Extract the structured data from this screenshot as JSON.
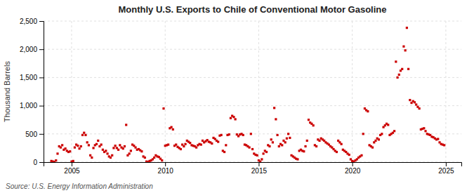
{
  "chart_data": {
    "type": "scatter",
    "title": "Monthly U.S. Exports to Chile of Conventional Motor Gasoline",
    "ylabel": "Thousand Barrels",
    "source": "Source: U.S. Energy Information Administration",
    "color": "#cc0000",
    "marker": "square",
    "grid": true,
    "xlim": [
      2003.5,
      2025.83
    ],
    "ylim": [
      0,
      2500
    ],
    "xticks": [
      2005,
      2010,
      2015,
      2020,
      2025
    ],
    "yticks": [
      0,
      500,
      {
        "value": 1000,
        "label": "1,000"
      },
      {
        "value": 1500,
        "label": "1,500"
      },
      {
        "value": 2000,
        "label": "2,000"
      },
      {
        "value": 2500,
        "label": "2,500"
      }
    ],
    "x": [
      2003.917,
      2004.0,
      2004.083,
      2004.167,
      2004.25,
      2004.333,
      2004.417,
      2004.5,
      2004.583,
      2004.667,
      2004.75,
      2004.833,
      2004.917,
      2005.0,
      2005.083,
      2005.167,
      2005.25,
      2005.333,
      2005.417,
      2005.5,
      2005.583,
      2005.667,
      2005.75,
      2005.833,
      2005.917,
      2006.0,
      2006.083,
      2006.167,
      2006.25,
      2006.333,
      2006.417,
      2006.5,
      2006.583,
      2006.667,
      2006.75,
      2006.833,
      2006.917,
      2007.0,
      2007.083,
      2007.167,
      2007.25,
      2007.333,
      2007.417,
      2007.5,
      2007.583,
      2007.667,
      2007.75,
      2007.833,
      2007.917,
      2008.0,
      2008.083,
      2008.167,
      2008.25,
      2008.333,
      2008.417,
      2008.5,
      2008.583,
      2008.667,
      2008.75,
      2008.833,
      2008.917,
      2009.0,
      2009.083,
      2009.167,
      2009.25,
      2009.333,
      2009.417,
      2009.5,
      2009.583,
      2009.667,
      2009.75,
      2009.833,
      2009.917,
      2010.0,
      2010.083,
      2010.167,
      2010.25,
      2010.333,
      2010.417,
      2010.5,
      2010.583,
      2010.667,
      2010.75,
      2010.833,
      2010.917,
      2011.0,
      2011.083,
      2011.167,
      2011.25,
      2011.333,
      2011.417,
      2011.5,
      2011.583,
      2011.667,
      2011.75,
      2011.833,
      2011.917,
      2012.0,
      2012.083,
      2012.167,
      2012.25,
      2012.333,
      2012.417,
      2012.5,
      2012.583,
      2012.667,
      2012.75,
      2012.833,
      2012.917,
      2013.0,
      2013.083,
      2013.167,
      2013.25,
      2013.333,
      2013.417,
      2013.5,
      2013.583,
      2013.667,
      2013.75,
      2013.833,
      2013.917,
      2014.0,
      2014.083,
      2014.167,
      2014.25,
      2014.333,
      2014.417,
      2014.5,
      2014.583,
      2014.667,
      2014.75,
      2014.833,
      2014.917,
      2015.0,
      2015.083,
      2015.167,
      2015.25,
      2015.333,
      2015.417,
      2015.5,
      2015.583,
      2015.667,
      2015.75,
      2015.833,
      2015.917,
      2016.0,
      2016.083,
      2016.167,
      2016.25,
      2016.333,
      2016.417,
      2016.5,
      2016.583,
      2016.667,
      2016.75,
      2016.833,
      2016.917,
      2017.0,
      2017.083,
      2017.167,
      2017.25,
      2017.333,
      2017.417,
      2017.5,
      2017.583,
      2017.667,
      2017.75,
      2017.833,
      2017.917,
      2018.0,
      2018.083,
      2018.167,
      2018.25,
      2018.333,
      2018.417,
      2018.5,
      2018.583,
      2018.667,
      2018.75,
      2018.833,
      2018.917,
      2019.0,
      2019.083,
      2019.167,
      2019.25,
      2019.333,
      2019.417,
      2019.5,
      2019.583,
      2019.667,
      2019.75,
      2019.833,
      2019.917,
      2020.0,
      2020.083,
      2020.167,
      2020.25,
      2020.333,
      2020.417,
      2020.5,
      2020.583,
      2020.667,
      2020.75,
      2020.833,
      2020.917,
      2021.0,
      2021.083,
      2021.167,
      2021.25,
      2021.333,
      2021.417,
      2021.5,
      2021.583,
      2021.667,
      2021.75,
      2021.833,
      2021.917,
      2022.0,
      2022.083,
      2022.167,
      2022.25,
      2022.333,
      2022.417,
      2022.5,
      2022.583,
      2022.667,
      2022.75,
      2022.833,
      2022.917,
      2023.0,
      2023.083,
      2023.167,
      2023.25,
      2023.333,
      2023.417,
      2023.5,
      2023.583,
      2023.667,
      2023.75,
      2023.833,
      2023.917,
      2024.0,
      2024.083,
      2024.167,
      2024.25,
      2024.333,
      2024.417,
      2024.5,
      2024.583,
      2024.667,
      2024.75,
      2024.833,
      2024.917
    ],
    "values": [
      20,
      10,
      5,
      30,
      150,
      280,
      260,
      300,
      220,
      240,
      200,
      180,
      190,
      10,
      20,
      260,
      310,
      290,
      240,
      280,
      480,
      520,
      480,
      350,
      300,
      120,
      80,
      250,
      300,
      320,
      380,
      280,
      310,
      220,
      180,
      200,
      150,
      100,
      80,
      120,
      250,
      290,
      250,
      220,
      300,
      260,
      240,
      280,
      660,
      120,
      150,
      200,
      310,
      290,
      260,
      220,
      230,
      210,
      190,
      100,
      80,
      10,
      5,
      20,
      30,
      50,
      80,
      120,
      100,
      90,
      60,
      30,
      950,
      290,
      300,
      310,
      600,
      620,
      580,
      290,
      310,
      270,
      250,
      230,
      310,
      280,
      320,
      380,
      360,
      340,
      300,
      290,
      280,
      260,
      300,
      320,
      310,
      380,
      350,
      370,
      390,
      360,
      350,
      330,
      430,
      410,
      380,
      360,
      470,
      480,
      200,
      180,
      300,
      480,
      490,
      780,
      820,
      800,
      760,
      490,
      460,
      490,
      500,
      480,
      310,
      300,
      280,
      260,
      500,
      230,
      150,
      130,
      120,
      30,
      10,
      50,
      150,
      200,
      180,
      300,
      280,
      400,
      350,
      960,
      760,
      480,
      280,
      320,
      300,
      380,
      350,
      420,
      500,
      430,
      120,
      100,
      80,
      60,
      50,
      200,
      220,
      200,
      190,
      280,
      380,
      750,
      700,
      680,
      650,
      300,
      280,
      400,
      380,
      420,
      400,
      380,
      350,
      330,
      310,
      280,
      260,
      230,
      200,
      180,
      380,
      350,
      320,
      220,
      200,
      180,
      150,
      130,
      50,
      20,
      10,
      30,
      50,
      80,
      100,
      120,
      500,
      950,
      920,
      900,
      300,
      280,
      260,
      350,
      380,
      420,
      400,
      480,
      500,
      620,
      650,
      680,
      660,
      480,
      500,
      520,
      550,
      1780,
      1500,
      1550,
      1620,
      1650,
      2050,
      1980,
      2380,
      1650,
      1100,
      1050,
      1080,
      1060,
      1020,
      980,
      950,
      580,
      590,
      600,
      550,
      500,
      490,
      480,
      450,
      440,
      420,
      400,
      410,
      350,
      320,
      310,
      300
    ]
  }
}
